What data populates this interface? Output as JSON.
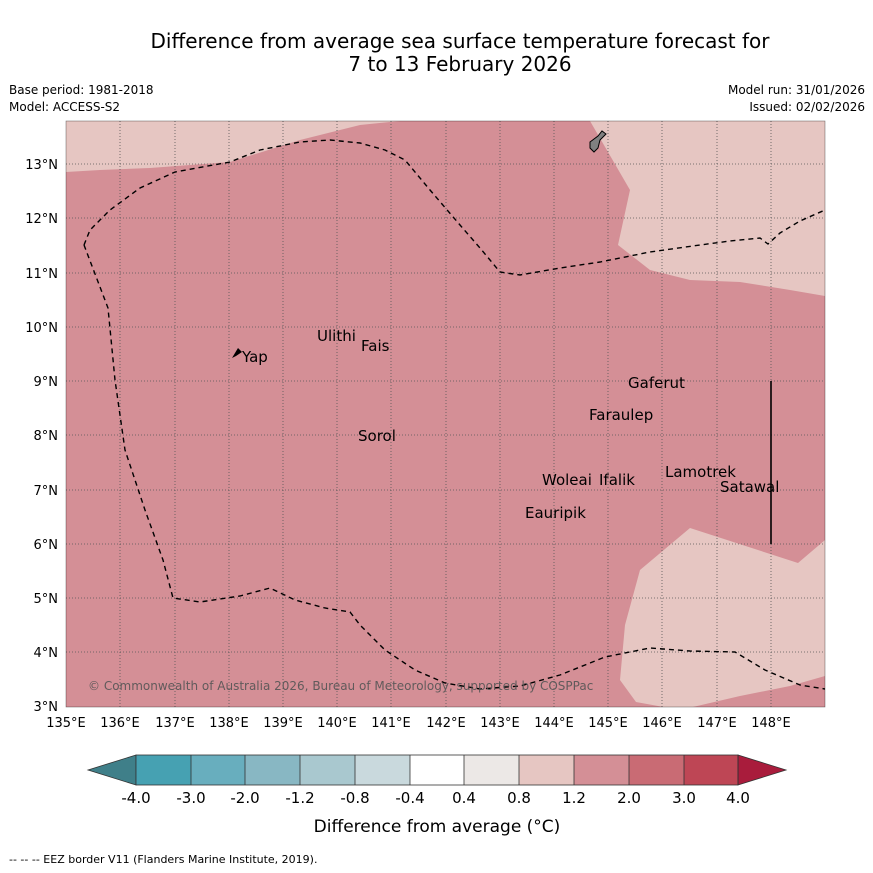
{
  "title": {
    "line1": "Difference from average sea surface temperature forecast for",
    "line2": "7 to 13 February 2026"
  },
  "header": {
    "base_period": "Base period: 1981-2018",
    "model": "Model: ACCESS-S2",
    "model_run": "Model run: 31/01/2026",
    "issued": "Issued: 02/02/2026"
  },
  "map": {
    "lon_range": [
      135,
      149
    ],
    "lat_range": [
      3,
      13.8
    ],
    "lon_ticks": [
      "135°E",
      "136°E",
      "137°E",
      "138°E",
      "139°E",
      "140°E",
      "141°E",
      "142°E",
      "143°E",
      "144°E",
      "145°E",
      "146°E",
      "147°E",
      "148°E"
    ],
    "lat_ticks": [
      "3°N",
      "4°N",
      "5°N",
      "6°N",
      "7°N",
      "8°N",
      "9°N",
      "10°N",
      "11°N",
      "12°N",
      "13°N"
    ],
    "places": [
      "Yap",
      "Ulithi",
      "Fais",
      "Sorol",
      "Gaferut",
      "Faraulep",
      "Woleai",
      "Ifalik",
      "Lamotrek",
      "Satawal",
      "Eauripik"
    ],
    "copyright": "© Commonwealth of Australia 2026, Bureau of Meteorology, supported by COSPPac",
    "colors": {
      "anomaly_0.8_1.2": "#e6c6c2",
      "anomaly_1.2_2.0": "#d48f96",
      "land": "#808080",
      "border": "#000000"
    }
  },
  "colorbar": {
    "labels": [
      "-4.0",
      "-3.0",
      "-2.0",
      "-1.2",
      "-0.8",
      "-0.4",
      "0.4",
      "0.8",
      "1.2",
      "2.0",
      "3.0",
      "4.0"
    ],
    "colors": [
      "#3f7f89",
      "#46a1b2",
      "#68aebe",
      "#88b7c3",
      "#a9c8cf",
      "#c9d9dd",
      "#ffffff",
      "#ece8e6",
      "#e6c6c2",
      "#d48f96",
      "#c96b74",
      "#be4655",
      "#a91c3c"
    ],
    "title": "Difference from average (°C)"
  },
  "footer": "-- -- -- EEZ border V11 (Flanders Marine Institute, 2019)."
}
